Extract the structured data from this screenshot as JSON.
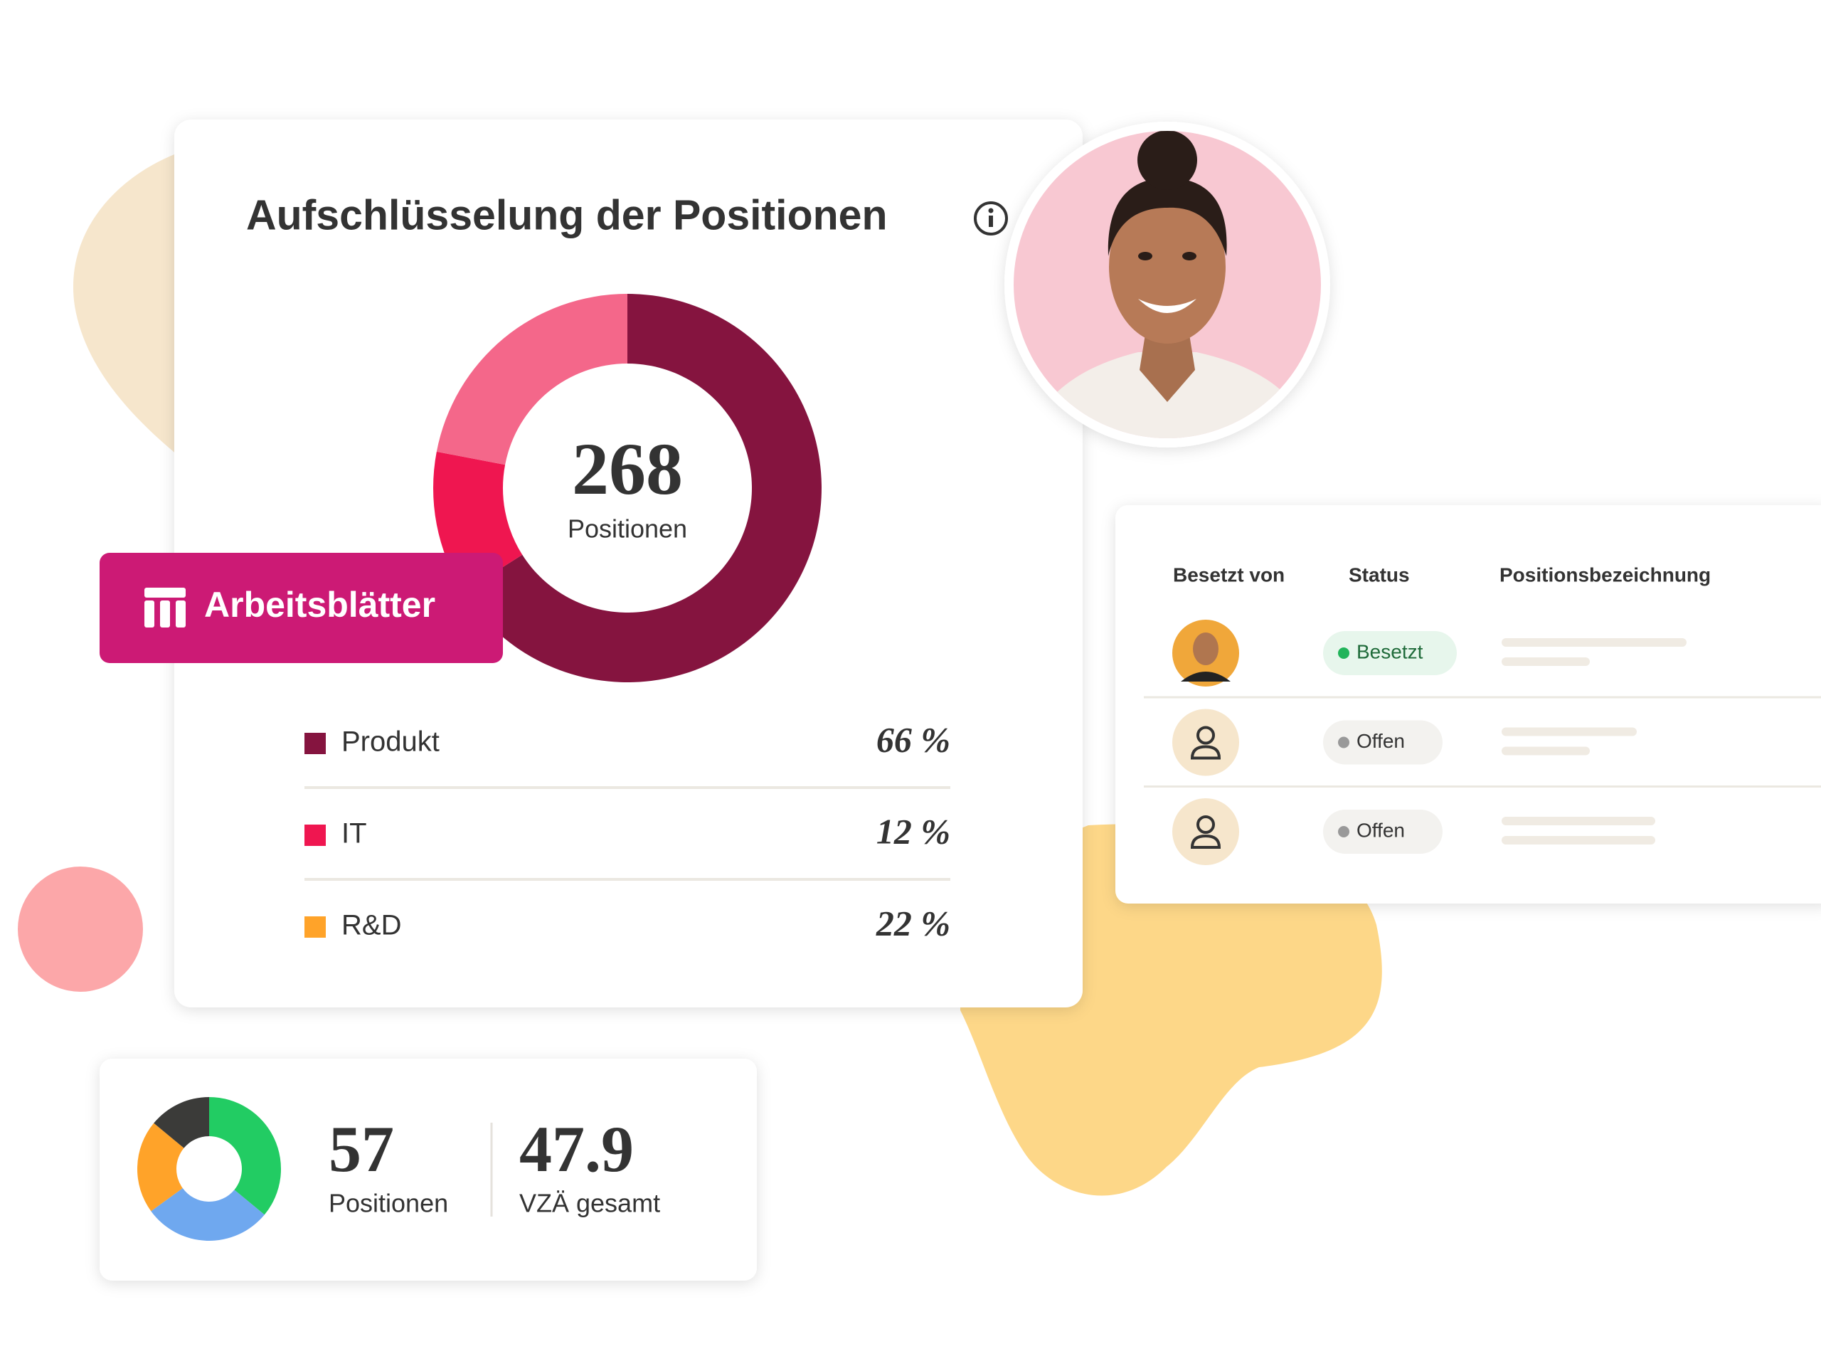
{
  "breakdown": {
    "title": "Aufschlüsselung der Positionen",
    "total": 268,
    "total_label": "Positionen",
    "button": "Arbeitsblätter",
    "items": [
      {
        "name": "Produkt",
        "color": "#85143f",
        "chart_color": "#85143f",
        "value": 66,
        "value_label": "66 %"
      },
      {
        "name": "IT",
        "color": "#ef1650",
        "chart_color": "#ef1650",
        "value": 12,
        "value_label": "12 %"
      },
      {
        "name": "R&D",
        "color": "#ffa329",
        "chart_color": "#f4678a",
        "value": 22,
        "value_label": "22 %"
      }
    ]
  },
  "table": {
    "headers": [
      "Besetzt von",
      "Status",
      "Positionsbezeichnung"
    ],
    "rows": [
      {
        "status": "Besetzt"
      },
      {
        "status": "Offen"
      },
      {
        "status": "Offen"
      }
    ]
  },
  "summary": {
    "positions": 57,
    "positions_label": "Positionen",
    "fte": 47.9,
    "fte_label": "VZÄ gesamt",
    "donut": {
      "values": [
        36,
        29,
        21,
        14
      ],
      "colors": [
        "#22cc63",
        "#6fa8ef",
        "#ffa329",
        "#3b3b39"
      ]
    }
  }
}
